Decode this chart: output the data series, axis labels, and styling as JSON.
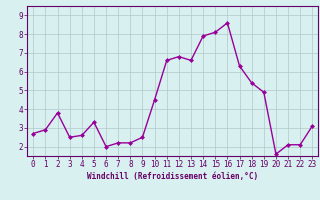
{
  "x": [
    0,
    1,
    2,
    3,
    4,
    5,
    6,
    7,
    8,
    9,
    10,
    11,
    12,
    13,
    14,
    15,
    16,
    17,
    18,
    19,
    20,
    21,
    22,
    23
  ],
  "y": [
    2.7,
    2.9,
    3.8,
    2.5,
    2.6,
    3.3,
    2.0,
    2.2,
    2.2,
    2.5,
    4.5,
    6.6,
    6.8,
    6.6,
    7.9,
    8.1,
    8.6,
    6.3,
    5.4,
    4.9,
    1.6,
    2.1,
    2.1,
    3.1
  ],
  "line_color": "#990099",
  "marker": "D",
  "marker_size": 2.0,
  "line_width": 1.0,
  "xlabel": "Windchill (Refroidissement éolien,°C)",
  "xlabel_fontsize": 5.5,
  "bg_color": "#d8f0f0",
  "grid_color": "#b0c8c8",
  "ylim": [
    1.5,
    9.5
  ],
  "xlim": [
    -0.5,
    23.5
  ],
  "yticks": [
    2,
    3,
    4,
    5,
    6,
    7,
    8,
    9
  ],
  "xticks": [
    0,
    1,
    2,
    3,
    4,
    5,
    6,
    7,
    8,
    9,
    10,
    11,
    12,
    13,
    14,
    15,
    16,
    17,
    18,
    19,
    20,
    21,
    22,
    23
  ],
  "tick_fontsize": 5.5,
  "tick_color": "#660066",
  "spine_color": "#660066",
  "xlabel_color": "#660066",
  "xlabel_fontweight": "bold"
}
